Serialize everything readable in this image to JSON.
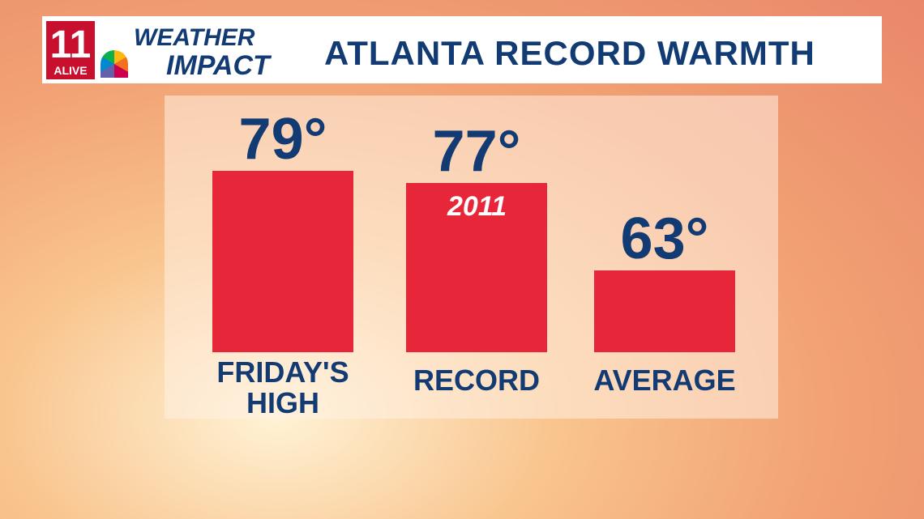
{
  "logo": {
    "station_number": "11",
    "station_name": "ALIVE",
    "brand_top": "WEATHER",
    "brand_bottom": "IMPACT"
  },
  "chart_data": {
    "type": "bar",
    "title": "ATLANTA RECORD WARMTH",
    "categories": [
      "FRIDAY'S HIGH",
      "RECORD",
      "AVERAGE"
    ],
    "values": [
      79,
      77,
      63
    ],
    "value_labels": [
      "79°",
      "77°",
      "63°"
    ],
    "color": "#e8263a",
    "ylim": [
      50,
      80
    ],
    "annotation": "2011"
  }
}
